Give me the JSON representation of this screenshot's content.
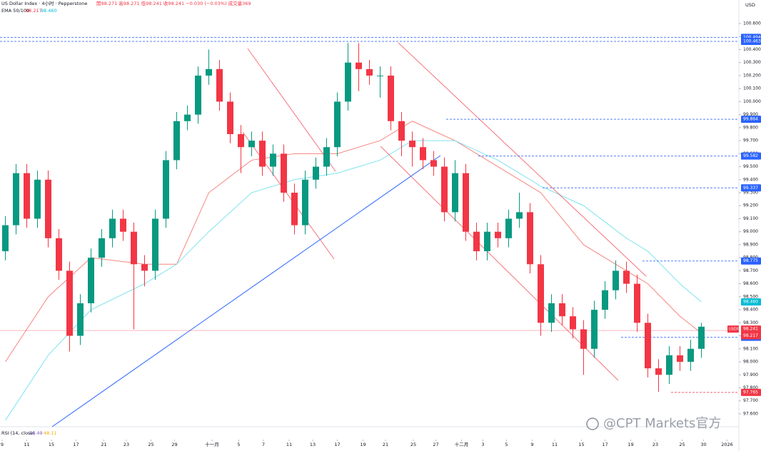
{
  "chart_data": {
    "type": "candlestick",
    "header": {
      "symbol": "US Dollar Index · 4小时 · Pepperstone",
      "ohlc": "開98.271 高98.271 低98.241 收98.241 −0.030 (−0.03%) 成交量369",
      "ema_label": "EMA 50/100",
      "ema50": "98.217",
      "ema100": "98.460",
      "rsi_label": "RSI (14, close)",
      "rsi1": "56.49",
      "rsi2": "48.11",
      "currency": "USD",
      "watermark": "@CPT Markets官方",
      "tag_symbol": "USDX"
    },
    "up_color": "#089981",
    "down_color": "#f23645",
    "xlim": [
      0,
      69
    ],
    "xticks": [
      {
        "value": 0.2,
        "label": "9"
      },
      {
        "value": 2.5,
        "label": "11"
      },
      {
        "value": 4.8,
        "label": "15"
      },
      {
        "value": 7.1,
        "label": "17"
      },
      {
        "value": 9.7,
        "label": "21"
      },
      {
        "value": 11.8,
        "label": "23"
      },
      {
        "value": 14.1,
        "label": "25"
      },
      {
        "value": 16.3,
        "label": "29"
      },
      {
        "value": 19.8,
        "label": "十一月"
      },
      {
        "value": 22.3,
        "label": "5"
      },
      {
        "value": 24.6,
        "label": "7"
      },
      {
        "value": 27,
        "label": "11"
      },
      {
        "value": 29.2,
        "label": "13"
      },
      {
        "value": 31.5,
        "label": "17"
      },
      {
        "value": 33.9,
        "label": "19"
      },
      {
        "value": 36,
        "label": "21"
      },
      {
        "value": 38.6,
        "label": "25"
      },
      {
        "value": 40.7,
        "label": "27"
      },
      {
        "value": 43.1,
        "label": "十二月"
      },
      {
        "value": 45.1,
        "label": "3"
      },
      {
        "value": 47.3,
        "label": "5"
      },
      {
        "value": 49.7,
        "label": "9"
      },
      {
        "value": 51.8,
        "label": "11"
      },
      {
        "value": 54.3,
        "label": "15"
      },
      {
        "value": 56.5,
        "label": "17"
      },
      {
        "value": 58.9,
        "label": "19"
      },
      {
        "value": 61.2,
        "label": "23"
      },
      {
        "value": 63.7,
        "label": "25"
      },
      {
        "value": 65.7,
        "label": "30"
      },
      {
        "value": 67.9,
        "label": "2026"
      }
    ],
    "ylim": [
      97.501,
      100.781
    ],
    "yticks": [
      {
        "value": 97.6,
        "label": "97.600"
      },
      {
        "value": 97.7,
        "label": "97.700"
      },
      {
        "value": 97.8,
        "label": "97.800"
      },
      {
        "value": 97.9,
        "label": "97.900"
      },
      {
        "value": 98.0,
        "label": "98.000"
      },
      {
        "value": 98.1,
        "label": "98.100"
      },
      {
        "value": 98.2,
        "label": "98.200"
      },
      {
        "value": 98.3,
        "label": "98.300"
      },
      {
        "value": 98.4,
        "label": "98.400"
      },
      {
        "value": 98.5,
        "label": "98.500"
      },
      {
        "value": 98.6,
        "label": "98.600"
      },
      {
        "value": 98.7,
        "label": "98.700"
      },
      {
        "value": 98.8,
        "label": "98.800"
      },
      {
        "value": 98.9,
        "label": "98.900"
      },
      {
        "value": 99.0,
        "label": "99.000"
      },
      {
        "value": 99.1,
        "label": "99.100"
      },
      {
        "value": 99.2,
        "label": "99.200"
      },
      {
        "value": 99.3,
        "label": "99.300"
      },
      {
        "value": 99.4,
        "label": "99.400"
      },
      {
        "value": 99.5,
        "label": "99.500"
      },
      {
        "value": 99.6,
        "label": "99.600"
      },
      {
        "value": 99.7,
        "label": "99.700"
      },
      {
        "value": 99.8,
        "label": "99.800"
      },
      {
        "value": 99.9,
        "label": "99.900"
      },
      {
        "value": 100.0,
        "label": "100.000"
      },
      {
        "value": 100.1,
        "label": "100.100"
      },
      {
        "value": 100.2,
        "label": "100.200"
      },
      {
        "value": 100.3,
        "label": "100.300"
      },
      {
        "value": 100.4,
        "label": "100.400"
      },
      {
        "value": 100.5,
        "label": "100.500"
      },
      {
        "value": 100.6,
        "label": "100.600"
      }
    ],
    "candles": {
      "open": [
        98.85,
        99.05,
        99.45,
        99.1,
        99.4,
        98.95,
        98.7,
        98.2,
        98.45,
        98.8,
        98.95,
        99.1,
        99.0,
        98.75,
        98.7,
        99.1,
        99.55,
        99.85,
        99.9,
        100.2,
        100.25,
        100.0,
        99.75,
        99.65,
        99.7,
        99.5,
        99.6,
        99.3,
        99.05,
        99.4,
        99.5,
        99.65,
        100.0,
        100.3,
        100.25,
        100.2,
        100.2,
        99.85,
        99.7,
        99.65,
        99.55,
        99.5,
        99.15,
        99.45,
        99.0,
        98.85,
        99.0,
        98.95,
        99.1,
        99.15,
        98.75,
        98.3,
        98.45,
        98.35,
        98.25,
        98.1,
        98.4,
        98.55,
        98.7,
        98.6,
        98.3,
        97.95,
        97.9,
        98.05,
        98.0,
        98.1
      ],
      "high": [
        99.12,
        99.52,
        99.52,
        99.47,
        99.47,
        99.02,
        98.77,
        98.52,
        98.87,
        99.02,
        99.17,
        99.17,
        99.07,
        98.82,
        99.17,
        99.62,
        99.92,
        99.97,
        100.27,
        100.4,
        100.32,
        100.07,
        99.82,
        99.77,
        99.77,
        99.67,
        99.67,
        99.37,
        99.47,
        99.57,
        99.72,
        100.07,
        100.45,
        100.45,
        100.32,
        100.27,
        100.27,
        99.92,
        99.77,
        99.72,
        99.62,
        99.57,
        99.55,
        99.52,
        99.07,
        99.07,
        99.07,
        99.17,
        99.3,
        99.22,
        98.82,
        98.52,
        98.52,
        98.42,
        98.32,
        98.47,
        98.62,
        98.78,
        98.77,
        98.67,
        98.37,
        98.02,
        98.12,
        98.12,
        98.17,
        98.3
      ],
      "low": [
        98.78,
        98.98,
        99.03,
        99.03,
        98.88,
        98.63,
        98.08,
        98.13,
        98.38,
        98.73,
        98.88,
        98.93,
        98.25,
        98.58,
        98.63,
        99.03,
        99.48,
        99.78,
        99.83,
        100.13,
        99.93,
        99.68,
        99.45,
        99.58,
        99.43,
        99.43,
        99.23,
        98.98,
        98.98,
        99.33,
        99.43,
        99.58,
        99.93,
        100.08,
        100.13,
        100.03,
        99.78,
        99.58,
        99.5,
        99.48,
        99.43,
        99.08,
        99.08,
        98.93,
        98.78,
        98.78,
        98.88,
        98.88,
        99.03,
        98.68,
        98.2,
        98.23,
        98.28,
        98.18,
        97.9,
        98.03,
        98.33,
        98.48,
        98.53,
        98.23,
        97.88,
        97.77,
        97.83,
        97.93,
        97.93,
        98.03
      ],
      "close": [
        99.05,
        99.45,
        99.1,
        99.4,
        98.95,
        98.7,
        98.2,
        98.45,
        98.8,
        98.95,
        99.1,
        99.0,
        98.75,
        98.7,
        99.1,
        99.55,
        99.85,
        99.9,
        100.2,
        100.25,
        100.0,
        99.75,
        99.65,
        99.7,
        99.5,
        99.6,
        99.3,
        99.05,
        99.4,
        99.5,
        99.65,
        100.0,
        100.3,
        100.25,
        100.2,
        100.2,
        99.85,
        99.7,
        99.65,
        99.55,
        99.5,
        99.15,
        99.45,
        99.0,
        98.85,
        99.0,
        98.95,
        99.1,
        99.15,
        98.75,
        98.3,
        98.45,
        98.35,
        98.25,
        98.1,
        98.4,
        98.55,
        98.7,
        98.6,
        98.3,
        97.95,
        97.9,
        98.05,
        98.0,
        98.1,
        98.27
      ]
    },
    "series": [
      {
        "name": "EMA 50",
        "color": "#f7857f",
        "x": [
          0,
          4,
          8,
          13,
          16,
          19,
          23,
          27,
          31,
          35,
          38,
          42,
          46,
          50,
          54,
          58,
          60,
          63,
          65
        ],
        "values": [
          98.0,
          98.5,
          98.8,
          98.75,
          98.75,
          99.3,
          99.55,
          99.6,
          99.6,
          99.7,
          99.85,
          99.7,
          99.5,
          99.3,
          98.9,
          98.7,
          98.6,
          98.35,
          98.22
        ]
      },
      {
        "name": "EMA 100",
        "color": "#7fe3ef",
        "x": [
          0,
          4,
          8,
          13,
          16,
          19,
          23,
          27,
          31,
          35,
          38,
          42,
          46,
          50,
          54,
          58,
          60,
          63,
          65
        ],
        "values": [
          97.55,
          98.05,
          98.4,
          98.6,
          98.75,
          99.0,
          99.3,
          99.4,
          99.45,
          99.55,
          99.7,
          99.7,
          99.55,
          99.35,
          99.2,
          98.95,
          98.85,
          98.6,
          98.46
        ]
      }
    ],
    "levels": [
      100.494,
      100.463,
      99.864,
      99.582,
      99.337,
      98.775,
      98.189,
      97.765
    ],
    "level_colors": [
      "#2962ff",
      "#2962ff",
      "#2962ff",
      "#2962ff",
      "#2962ff",
      "#2962ff",
      "#2962ff",
      "#f23645"
    ],
    "price_tags": [
      {
        "value": 98.46,
        "label": "98.460",
        "color": "#00bcd4"
      },
      {
        "value": 98.241,
        "label": "98.241",
        "color": "#f23645"
      },
      {
        "value": 98.217,
        "label": "98.217",
        "color": "#f23645"
      }
    ]
  }
}
